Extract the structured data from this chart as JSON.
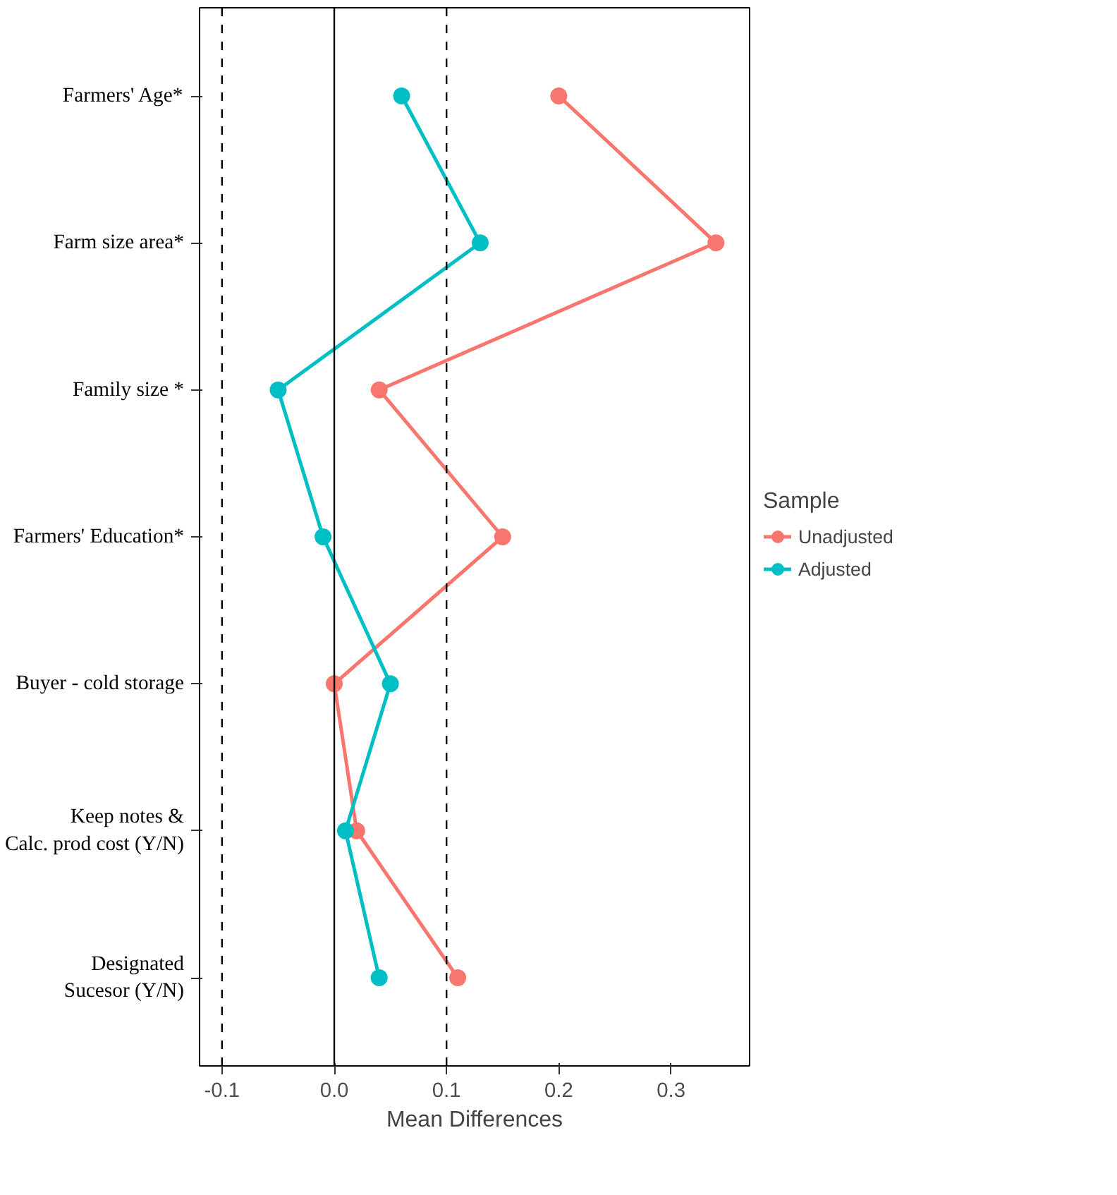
{
  "chart_data": {
    "type": "line",
    "orientation": "horizontal",
    "xlabel": "Mean Differences",
    "legend_title": "Sample",
    "legend": "right",
    "grid": false,
    "marker": "circle",
    "categories": [
      "Farmers' Age*",
      "Farm size area*",
      "Family size *",
      "Farmers' Education*",
      "Buyer - cold storage",
      "Keep notes &\nCalc. prod cost (Y/N)",
      "Designated\nSucesor (Y/N)"
    ],
    "series": [
      {
        "name": "Unadjusted",
        "color": "#f8766d",
        "values": [
          0.2,
          0.34,
          0.04,
          0.15,
          0.0,
          0.02,
          0.11
        ]
      },
      {
        "name": "Adjusted",
        "color": "#00bfc4",
        "values": [
          0.06,
          0.13,
          -0.05,
          -0.01,
          0.05,
          0.01,
          0.04
        ]
      }
    ],
    "xlim": [
      -0.12,
      0.37
    ],
    "xticks": [
      -0.1,
      {
        "value": 0,
        "label": "0.0"
      },
      0.1,
      0.2,
      0.3
    ],
    "ref_lines": [
      {
        "axis": "x",
        "value": -0.1,
        "line_style": "dashed"
      },
      {
        "axis": "x",
        "value": 0.0,
        "line_style": "solid"
      },
      {
        "axis": "x",
        "value": 0.1,
        "line_style": "dashed"
      }
    ]
  }
}
